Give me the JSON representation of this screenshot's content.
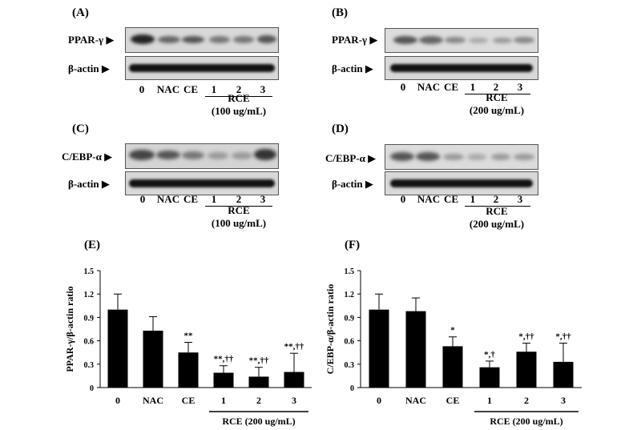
{
  "blots": [
    {
      "id": "A",
      "label": "(A)",
      "target": "PPAR-γ ▶",
      "control": "β-actin ▶",
      "lanes": [
        "0",
        "NAC",
        "CE",
        "1",
        "2",
        "3"
      ],
      "rce": "RCE",
      "conc": "(100 ug/mL)"
    },
    {
      "id": "B",
      "label": "(B)",
      "target": "PPAR-γ ▶",
      "control": "β-actin ▶",
      "lanes": [
        "0",
        "NAC",
        "CE",
        "1",
        "2",
        "3"
      ],
      "rce": "RCE",
      "conc": "(200 ug/mL)"
    },
    {
      "id": "C",
      "label": "(C)",
      "target": "C/EBP-α ▶",
      "control": "β-actin ▶",
      "lanes": [
        "0",
        "NAC",
        "CE",
        "1",
        "2",
        "3"
      ],
      "rce": "RCE",
      "conc": "(100 ug/mL)"
    },
    {
      "id": "D",
      "label": "(D)",
      "target": "C/EBP-α ▶",
      "control": "β-actin ▶",
      "lanes": [
        "0",
        "NAC",
        "CE",
        "1",
        "2",
        "3"
      ],
      "rce": "RCE",
      "conc": "(200 ug/mL)"
    }
  ],
  "chart_data": [
    {
      "type": "bar",
      "panel_label": "(E)",
      "ylabel": "PPAR-γ/β-actin ratio",
      "xlabel": "RCE (200 ug/mL)",
      "categories": [
        "0",
        "NAC",
        "CE",
        "1",
        "2",
        "3"
      ],
      "values": [
        1.0,
        0.73,
        0.45,
        0.19,
        0.14,
        0.2
      ],
      "errors": [
        0.2,
        0.18,
        0.13,
        0.09,
        0.12,
        0.24
      ],
      "annotations": [
        "",
        "",
        "**",
        "**,††",
        "**,††",
        "**,††"
      ],
      "ylim": [
        0,
        1.5
      ],
      "yticks": [
        "0",
        "0.3",
        "0.6",
        "0.9",
        "1.2",
        "1.5"
      ],
      "color": "#000000"
    },
    {
      "type": "bar",
      "panel_label": "(F)",
      "ylabel": "C/EBP-α/β-actin ratio",
      "xlabel": "RCE (200 ug/mL)",
      "categories": [
        "0",
        "NAC",
        "CE",
        "1",
        "2",
        "3"
      ],
      "values": [
        1.0,
        0.98,
        0.53,
        0.26,
        0.46,
        0.33
      ],
      "errors": [
        0.2,
        0.17,
        0.12,
        0.08,
        0.11,
        0.24
      ],
      "annotations": [
        "",
        "",
        "*",
        "*,†",
        "*,††",
        "*,††"
      ],
      "ylim": [
        0,
        1.5
      ],
      "yticks": [
        "0",
        "0.3",
        "0.6",
        "0.9",
        "1.2",
        "1.5"
      ],
      "color": "#000000"
    }
  ]
}
